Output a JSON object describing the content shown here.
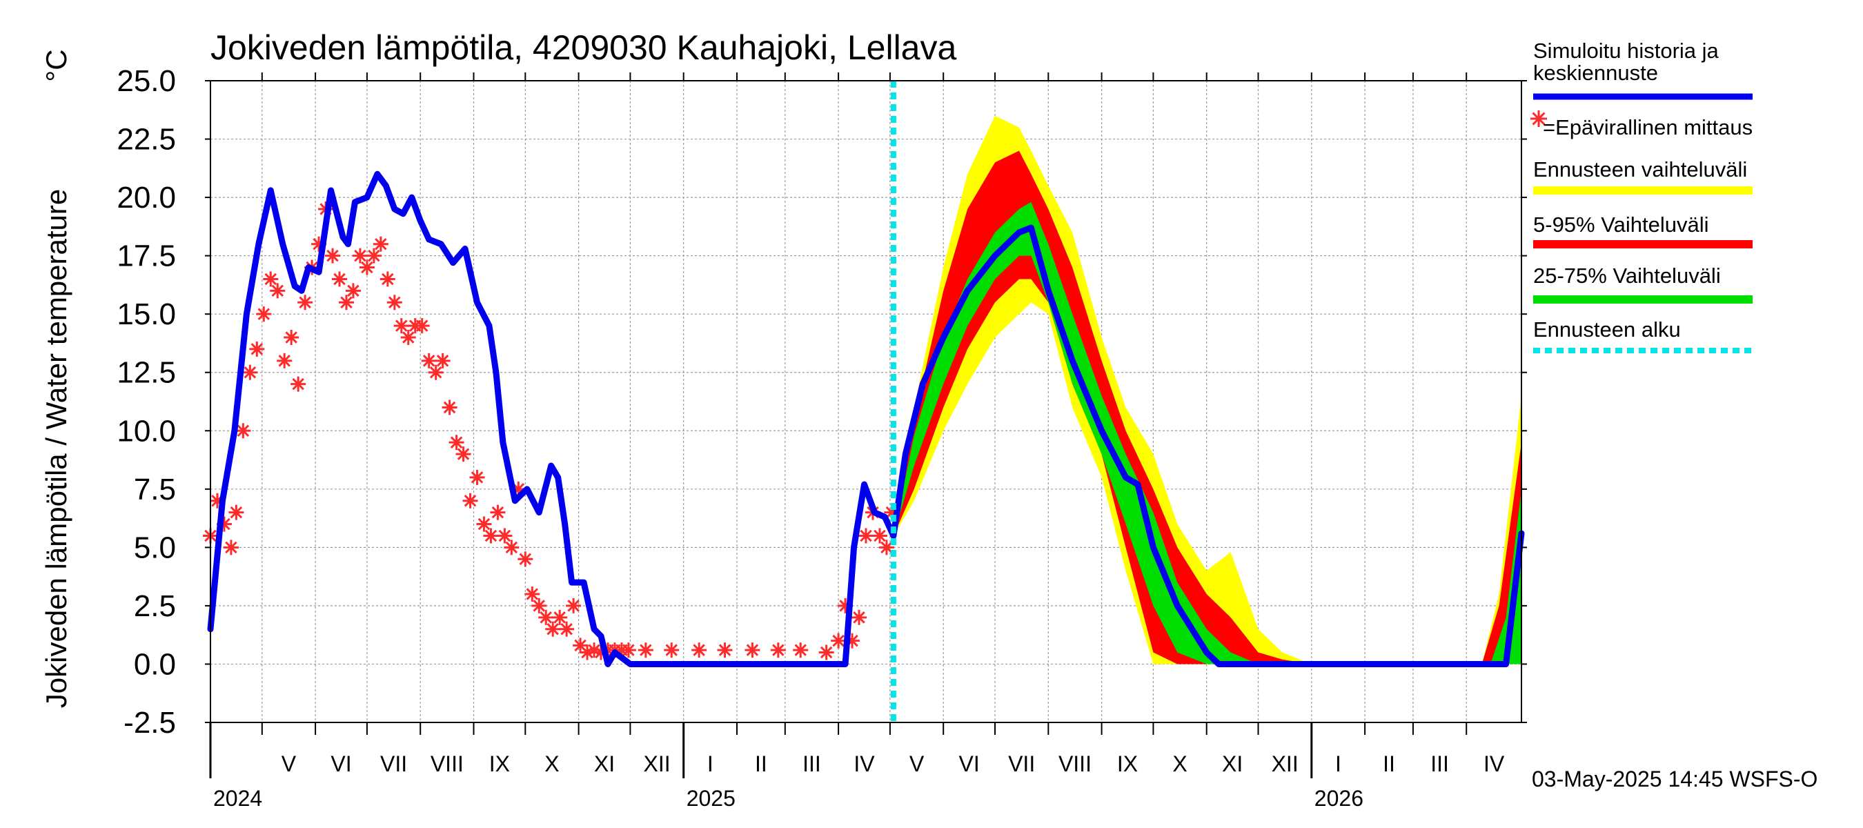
{
  "chart_data": {
    "type": "line",
    "title": "Jokiveden lämpötila, 4209030 Kauhajoki, Lellava",
    "ylabel": "Jokiveden lämpötila / Water temperature",
    "yunit": "°C",
    "ylim": [
      -2.5,
      25.0
    ],
    "yticks": [
      "25.0",
      "22.5",
      "20.0",
      "17.5",
      "15.0",
      "12.5",
      "10.0",
      "7.5",
      "5.0",
      "2.5",
      "0.0",
      "-2.5"
    ],
    "xlim": [
      "2024-04-01",
      "2026-05-03"
    ],
    "grid": true,
    "months": [
      {
        "label": "V",
        "start": "2024-05-01"
      },
      {
        "label": "VI",
        "start": "2024-06-01"
      },
      {
        "label": "VII",
        "start": "2024-07-01"
      },
      {
        "label": "VIII",
        "start": "2024-08-01"
      },
      {
        "label": "IX",
        "start": "2024-09-01"
      },
      {
        "label": "X",
        "start": "2024-10-01"
      },
      {
        "label": "XI",
        "start": "2024-11-01"
      },
      {
        "label": "XII",
        "start": "2024-12-01"
      },
      {
        "label": "I",
        "start": "2025-01-01"
      },
      {
        "label": "II",
        "start": "2025-02-01"
      },
      {
        "label": "III",
        "start": "2025-03-01"
      },
      {
        "label": "IV",
        "start": "2025-04-01"
      },
      {
        "label": "V",
        "start": "2025-05-01"
      },
      {
        "label": "VI",
        "start": "2025-06-01"
      },
      {
        "label": "VII",
        "start": "2025-07-01"
      },
      {
        "label": "VIII",
        "start": "2025-08-01"
      },
      {
        "label": "IX",
        "start": "2025-09-01"
      },
      {
        "label": "X",
        "start": "2025-10-01"
      },
      {
        "label": "XI",
        "start": "2025-11-01"
      },
      {
        "label": "XII",
        "start": "2025-12-01"
      },
      {
        "label": "I",
        "start": "2026-01-01"
      },
      {
        "label": "II",
        "start": "2026-02-01"
      },
      {
        "label": "III",
        "start": "2026-03-01"
      },
      {
        "label": "IV",
        "start": "2026-04-01"
      }
    ],
    "years": [
      {
        "label": "2024",
        "start": "2024-04-01"
      },
      {
        "label": "2025",
        "start": "2025-01-01"
      },
      {
        "label": "2026",
        "start": "2026-01-01"
      }
    ],
    "forecast_start": "2025-05-03",
    "series": [
      {
        "name": "Simuloitu historia ja keskiennuste",
        "color": "#0000ee",
        "x": [
          "2024-04-01",
          "2024-04-08",
          "2024-04-15",
          "2024-04-22",
          "2024-04-29",
          "2024-05-06",
          "2024-05-13",
          "2024-05-20",
          "2024-05-24",
          "2024-05-28",
          "2024-06-03",
          "2024-06-10",
          "2024-06-17",
          "2024-06-20",
          "2024-06-24",
          "2024-07-01",
          "2024-07-07",
          "2024-07-12",
          "2024-07-17",
          "2024-07-22",
          "2024-07-27",
          "2024-08-01",
          "2024-08-06",
          "2024-08-13",
          "2024-08-20",
          "2024-08-27",
          "2024-09-03",
          "2024-09-10",
          "2024-09-14",
          "2024-09-18",
          "2024-09-25",
          "2024-10-02",
          "2024-10-09",
          "2024-10-16",
          "2024-10-20",
          "2024-10-24",
          "2024-10-28",
          "2024-11-04",
          "2024-11-10",
          "2024-11-14",
          "2024-11-18",
          "2024-11-22",
          "2024-12-01",
          "2025-01-15",
          "2025-03-01",
          "2025-04-05",
          "2025-04-10",
          "2025-04-16",
          "2025-04-22",
          "2025-04-28",
          "2025-05-03",
          "2025-05-10",
          "2025-05-20",
          "2025-06-01",
          "2025-06-15",
          "2025-07-01",
          "2025-07-15",
          "2025-07-22",
          "2025-08-01",
          "2025-08-15",
          "2025-09-01",
          "2025-09-15",
          "2025-09-22",
          "2025-10-01",
          "2025-10-15",
          "2025-11-01",
          "2025-11-08",
          "2025-11-15",
          "2025-12-01",
          "2026-01-01",
          "2026-04-15",
          "2026-04-24",
          "2026-05-03"
        ],
        "y": [
          1.5,
          7.0,
          10.0,
          15.0,
          18.0,
          20.3,
          18.0,
          16.2,
          16.0,
          17.0,
          16.8,
          20.3,
          18.3,
          18.0,
          19.8,
          20.0,
          21.0,
          20.5,
          19.5,
          19.3,
          20.0,
          19.0,
          18.2,
          18.0,
          17.2,
          17.8,
          15.5,
          14.5,
          12.5,
          9.5,
          7.0,
          7.5,
          6.5,
          8.5,
          8.0,
          6.0,
          3.5,
          3.5,
          1.5,
          1.2,
          0.0,
          0.5,
          0.0,
          0.0,
          0.0,
          0.0,
          5.0,
          7.7,
          6.5,
          6.3,
          5.5,
          9.0,
          12.0,
          14.0,
          16.0,
          17.5,
          18.5,
          18.7,
          16.0,
          13.0,
          10.0,
          8.0,
          7.7,
          5.0,
          2.5,
          0.5,
          0.0,
          0.0,
          0.0,
          0.0,
          0.0,
          0.0,
          5.6
        ]
      },
      {
        "name": "=Epävirallinen mittaus",
        "color": "#ff2a2a",
        "x": [
          "2024-04-01",
          "2024-04-05",
          "2024-04-09",
          "2024-04-13",
          "2024-04-16",
          "2024-04-20",
          "2024-04-24",
          "2024-04-28",
          "2024-05-02",
          "2024-05-06",
          "2024-05-10",
          "2024-05-14",
          "2024-05-18",
          "2024-05-22",
          "2024-05-26",
          "2024-05-30",
          "2024-06-03",
          "2024-06-07",
          "2024-06-11",
          "2024-06-15",
          "2024-06-19",
          "2024-06-23",
          "2024-06-27",
          "2024-07-01",
          "2024-07-05",
          "2024-07-09",
          "2024-07-13",
          "2024-07-17",
          "2024-07-21",
          "2024-07-25",
          "2024-07-29",
          "2024-08-02",
          "2024-08-06",
          "2024-08-10",
          "2024-08-14",
          "2024-08-18",
          "2024-08-22",
          "2024-08-26",
          "2024-08-30",
          "2024-09-03",
          "2024-09-07",
          "2024-09-11",
          "2024-09-15",
          "2024-09-19",
          "2024-09-23",
          "2024-09-27",
          "2024-10-01",
          "2024-10-05",
          "2024-10-09",
          "2024-10-13",
          "2024-10-17",
          "2024-10-21",
          "2024-10-25",
          "2024-10-29",
          "2024-11-02",
          "2024-11-06",
          "2024-11-10",
          "2024-11-14",
          "2024-11-18",
          "2024-11-22",
          "2024-11-26",
          "2024-11-30",
          "2024-12-10",
          "2024-12-25",
          "2025-01-10",
          "2025-01-25",
          "2025-02-10",
          "2025-02-25",
          "2025-03-10",
          "2025-03-25",
          "2025-04-01",
          "2025-04-05",
          "2025-04-09",
          "2025-04-13",
          "2025-04-17",
          "2025-04-21",
          "2025-04-25",
          "2025-04-29",
          "2025-05-02"
        ],
        "y": [
          5.5,
          7.0,
          6.0,
          5.0,
          6.5,
          10.0,
          12.5,
          13.5,
          15.0,
          16.5,
          16.0,
          13.0,
          14.0,
          12.0,
          15.5,
          17.0,
          18.0,
          19.5,
          17.5,
          16.5,
          15.5,
          16.0,
          17.5,
          17.0,
          17.5,
          18.0,
          16.5,
          15.5,
          14.5,
          14.0,
          14.5,
          14.5,
          13.0,
          12.5,
          13.0,
          11.0,
          9.5,
          9.0,
          7.0,
          8.0,
          6.0,
          5.5,
          6.5,
          5.5,
          5.0,
          7.5,
          4.5,
          3.0,
          2.5,
          2.0,
          1.5,
          2.0,
          1.5,
          2.5,
          0.8,
          0.5,
          0.6,
          0.5,
          0.6,
          0.6,
          0.6,
          0.6,
          0.6,
          0.6,
          0.6,
          0.6,
          0.6,
          0.6,
          0.6,
          0.5,
          1.0,
          2.5,
          1.0,
          2.0,
          5.5,
          6.5,
          5.5,
          5.0,
          6.5
        ]
      }
    ],
    "bands": [
      {
        "name": "Ennusteen vaihteluväli",
        "color": "#ffff00",
        "x": [
          "2025-05-03",
          "2025-05-15",
          "2025-06-01",
          "2025-06-15",
          "2025-07-01",
          "2025-07-15",
          "2025-07-22",
          "2025-08-01",
          "2025-08-15",
          "2025-09-01",
          "2025-09-15",
          "2025-10-01",
          "2025-10-15",
          "2025-11-01",
          "2025-11-15",
          "2025-12-01",
          "2025-12-15",
          "2026-01-01",
          "2026-04-10",
          "2026-04-20",
          "2026-05-03"
        ],
        "upper": [
          5.5,
          11.0,
          17.0,
          21.0,
          23.5,
          23.0,
          22.0,
          20.5,
          18.5,
          14.0,
          11.0,
          9.0,
          6.0,
          4.0,
          4.8,
          1.5,
          0.5,
          0.0,
          0.0,
          3.0,
          11.5
        ],
        "lower": [
          5.5,
          7.0,
          10.0,
          12.0,
          14.0,
          15.0,
          15.5,
          15.0,
          11.0,
          8.0,
          4.0,
          0.0,
          0.0,
          0.0,
          0.0,
          0.0,
          0.0,
          0.0,
          0.0,
          0.0,
          0.0
        ]
      },
      {
        "name": "5-95% Vaihteluväli",
        "color": "#ff0000",
        "x": [
          "2025-05-03",
          "2025-05-15",
          "2025-06-01",
          "2025-06-15",
          "2025-07-01",
          "2025-07-15",
          "2025-07-22",
          "2025-08-01",
          "2025-08-15",
          "2025-09-01",
          "2025-09-15",
          "2025-10-01",
          "2025-10-15",
          "2025-11-01",
          "2025-11-15",
          "2025-12-01",
          "2025-12-15",
          "2026-01-01",
          "2026-04-10",
          "2026-04-20",
          "2026-05-03"
        ],
        "upper": [
          5.5,
          10.5,
          16.0,
          19.5,
          21.5,
          22.0,
          21.0,
          19.5,
          17.0,
          13.0,
          10.0,
          7.5,
          5.0,
          3.0,
          2.0,
          0.5,
          0.2,
          0.0,
          0.0,
          2.5,
          9.5
        ],
        "lower": [
          5.5,
          7.5,
          11.0,
          13.5,
          15.5,
          16.5,
          16.5,
          15.5,
          12.0,
          9.0,
          5.0,
          0.5,
          0.0,
          0.0,
          0.0,
          0.0,
          0.0,
          0.0,
          0.0,
          0.0,
          0.0
        ]
      },
      {
        "name": "25-75% Vaihteluväli",
        "color": "#00dd00",
        "x": [
          "2025-05-03",
          "2025-05-15",
          "2025-06-01",
          "2025-06-15",
          "2025-07-01",
          "2025-07-15",
          "2025-07-22",
          "2025-08-01",
          "2025-08-15",
          "2025-09-01",
          "2025-09-15",
          "2025-10-01",
          "2025-10-15",
          "2025-11-01",
          "2025-11-15",
          "2025-12-01",
          "2025-12-15",
          "2026-01-01",
          "2026-04-15",
          "2026-04-24",
          "2026-05-03"
        ],
        "upper": [
          5.5,
          9.8,
          14.0,
          16.5,
          18.5,
          19.5,
          19.8,
          18.0,
          15.0,
          11.5,
          9.0,
          6.5,
          3.5,
          1.5,
          0.5,
          0.0,
          0.0,
          0.0,
          0.0,
          2.0,
          7.5
        ],
        "lower": [
          5.5,
          8.5,
          12.0,
          14.5,
          16.5,
          17.5,
          17.5,
          15.5,
          12.0,
          9.0,
          6.0,
          2.5,
          0.5,
          0.0,
          0.0,
          0.0,
          0.0,
          0.0,
          0.0,
          0.0,
          0.0
        ]
      }
    ],
    "legend": [
      {
        "label": "Simuloitu historia ja keskiennuste",
        "style": "line",
        "color": "#0000ee"
      },
      {
        "label": "=Epävirallinen mittaus",
        "style": "marker",
        "color": "#ff2a2a"
      },
      {
        "label": "Ennusteen vaihteluväli",
        "style": "bar",
        "color": "#ffff00"
      },
      {
        "label": "5-95% Vaihteluväli",
        "style": "bar",
        "color": "#ff0000"
      },
      {
        "label": "25-75% Vaihteluväli",
        "style": "bar",
        "color": "#00dd00"
      },
      {
        "label": "Ennusteen alku",
        "style": "dashed",
        "color": "#00e5e5"
      }
    ],
    "legend_position": "right",
    "footer": "03-May-2025 14:45 WSFS-O"
  }
}
